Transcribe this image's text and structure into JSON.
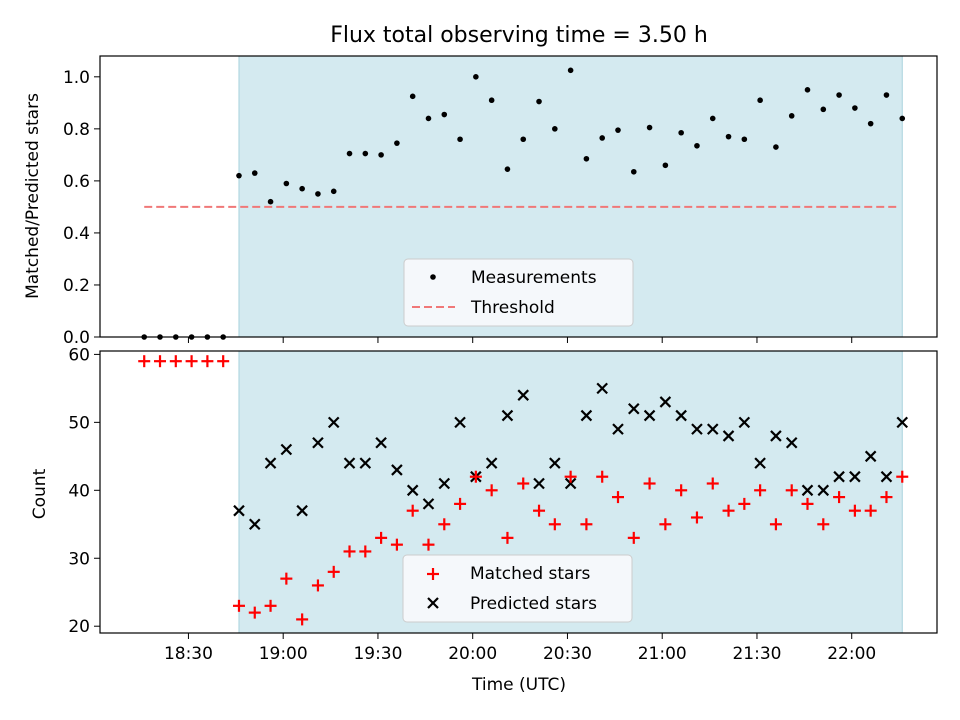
{
  "chart_data": {
    "title": "Flux total observing time = 3.50 h",
    "xlabel": "Time (UTC)",
    "x_unit": "minutes after 18:00 UTC",
    "xlim": [
      2,
      267
    ],
    "xticks": [
      {
        "minutes": 30,
        "label": "18:30"
      },
      {
        "minutes": 60,
        "label": "19:00"
      },
      {
        "minutes": 90,
        "label": "19:30"
      },
      {
        "minutes": 120,
        "label": "20:00"
      },
      {
        "minutes": 150,
        "label": "20:30"
      },
      {
        "minutes": 180,
        "label": "21:00"
      },
      {
        "minutes": 210,
        "label": "21:30"
      },
      {
        "minutes": 240,
        "label": "22:00"
      }
    ],
    "observing_window": [
      46,
      256
    ],
    "panels": [
      {
        "type": "scatter",
        "ylabel": "Matched/Predicted stars",
        "ylim": [
          0,
          1.08
        ],
        "yticks": [
          0.0,
          0.2,
          0.4,
          0.6,
          0.8,
          1.0
        ],
        "threshold": {
          "value": 0.5,
          "x_range": [
            16,
            255
          ],
          "color": "#f07878"
        },
        "legend": {
          "position": "lower-center",
          "entries": [
            "Measurements",
            "Threshold"
          ]
        },
        "measurements": [
          [
            16,
            0
          ],
          [
            21,
            0
          ],
          [
            26,
            0
          ],
          [
            31,
            0
          ],
          [
            36,
            0
          ],
          [
            41,
            0
          ],
          [
            46,
            0.62
          ],
          [
            51,
            0.63
          ],
          [
            56,
            0.52
          ],
          [
            61,
            0.59
          ],
          [
            66,
            0.57
          ],
          [
            71,
            0.55
          ],
          [
            76,
            0.56
          ],
          [
            81,
            0.705
          ],
          [
            86,
            0.705
          ],
          [
            91,
            0.7
          ],
          [
            96,
            0.745
          ],
          [
            101,
            0.925
          ],
          [
            106,
            0.84
          ],
          [
            111,
            0.855
          ],
          [
            116,
            0.76
          ],
          [
            121,
            1.0
          ],
          [
            126,
            0.91
          ],
          [
            131,
            0.645
          ],
          [
            136,
            0.76
          ],
          [
            141,
            0.905
          ],
          [
            146,
            0.8
          ],
          [
            151,
            1.025
          ],
          [
            156,
            0.685
          ],
          [
            161,
            0.765
          ],
          [
            166,
            0.795
          ],
          [
            171,
            0.635
          ],
          [
            176,
            0.805
          ],
          [
            181,
            0.66
          ],
          [
            186,
            0.785
          ],
          [
            191,
            0.735
          ],
          [
            196,
            0.84
          ],
          [
            201,
            0.77
          ],
          [
            206,
            0.76
          ],
          [
            211,
            0.91
          ],
          [
            216,
            0.73
          ],
          [
            221,
            0.85
          ],
          [
            226,
            0.95
          ],
          [
            231,
            0.875
          ],
          [
            236,
            0.93
          ],
          [
            241,
            0.88
          ],
          [
            246,
            0.82
          ],
          [
            251,
            0.93
          ],
          [
            256,
            0.84
          ]
        ]
      },
      {
        "type": "scatter",
        "ylabel": "Count",
        "ylim": [
          19,
          60.5
        ],
        "yticks": [
          20,
          30,
          40,
          50,
          60
        ],
        "legend": {
          "position": "lower-center",
          "entries": [
            "Matched stars",
            "Predicted stars"
          ]
        },
        "matched_stars": [
          [
            16,
            59
          ],
          [
            21,
            59
          ],
          [
            26,
            59
          ],
          [
            31,
            59
          ],
          [
            36,
            59
          ],
          [
            41,
            59
          ],
          [
            46,
            23
          ],
          [
            51,
            22
          ],
          [
            56,
            23
          ],
          [
            61,
            27
          ],
          [
            66,
            21
          ],
          [
            71,
            26
          ],
          [
            76,
            28
          ],
          [
            81,
            31
          ],
          [
            86,
            31
          ],
          [
            91,
            33
          ],
          [
            96,
            32
          ],
          [
            101,
            37
          ],
          [
            106,
            32
          ],
          [
            111,
            35
          ],
          [
            116,
            38
          ],
          [
            121,
            42
          ],
          [
            126,
            40
          ],
          [
            131,
            33
          ],
          [
            136,
            41
          ],
          [
            141,
            37
          ],
          [
            146,
            35
          ],
          [
            151,
            42
          ],
          [
            156,
            35
          ],
          [
            161,
            42
          ],
          [
            166,
            39
          ],
          [
            171,
            33
          ],
          [
            176,
            41
          ],
          [
            181,
            35
          ],
          [
            186,
            40
          ],
          [
            191,
            36
          ],
          [
            196,
            41
          ],
          [
            201,
            37
          ],
          [
            206,
            38
          ],
          [
            211,
            40
          ],
          [
            216,
            35
          ],
          [
            221,
            40
          ],
          [
            226,
            38
          ],
          [
            231,
            35
          ],
          [
            236,
            39
          ],
          [
            241,
            37
          ],
          [
            246,
            37
          ],
          [
            251,
            39
          ],
          [
            256,
            42
          ]
        ],
        "predicted_stars": [
          [
            46,
            37
          ],
          [
            51,
            35
          ],
          [
            56,
            44
          ],
          [
            61,
            46
          ],
          [
            66,
            37
          ],
          [
            71,
            47
          ],
          [
            76,
            50
          ],
          [
            81,
            44
          ],
          [
            86,
            44
          ],
          [
            91,
            47
          ],
          [
            96,
            43
          ],
          [
            101,
            40
          ],
          [
            106,
            38
          ],
          [
            111,
            41
          ],
          [
            116,
            50
          ],
          [
            121,
            42
          ],
          [
            126,
            44
          ],
          [
            131,
            51
          ],
          [
            136,
            54
          ],
          [
            141,
            41
          ],
          [
            146,
            44
          ],
          [
            151,
            41
          ],
          [
            156,
            51
          ],
          [
            161,
            55
          ],
          [
            166,
            49
          ],
          [
            171,
            52
          ],
          [
            176,
            51
          ],
          [
            181,
            53
          ],
          [
            186,
            51
          ],
          [
            191,
            49
          ],
          [
            196,
            49
          ],
          [
            201,
            48
          ],
          [
            206,
            50
          ],
          [
            211,
            44
          ],
          [
            216,
            48
          ],
          [
            221,
            47
          ],
          [
            226,
            40
          ],
          [
            231,
            40
          ],
          [
            236,
            42
          ],
          [
            241,
            42
          ],
          [
            246,
            45
          ],
          [
            251,
            42
          ],
          [
            256,
            50
          ]
        ]
      }
    ],
    "colors": {
      "window": "#d4eaf0",
      "window_edge": "#a8d2dd",
      "measurement": "#000000",
      "threshold": "#f07878",
      "matched": "#ff0000",
      "predicted": "#000000",
      "legend_bg": "#f5f8fb"
    }
  }
}
